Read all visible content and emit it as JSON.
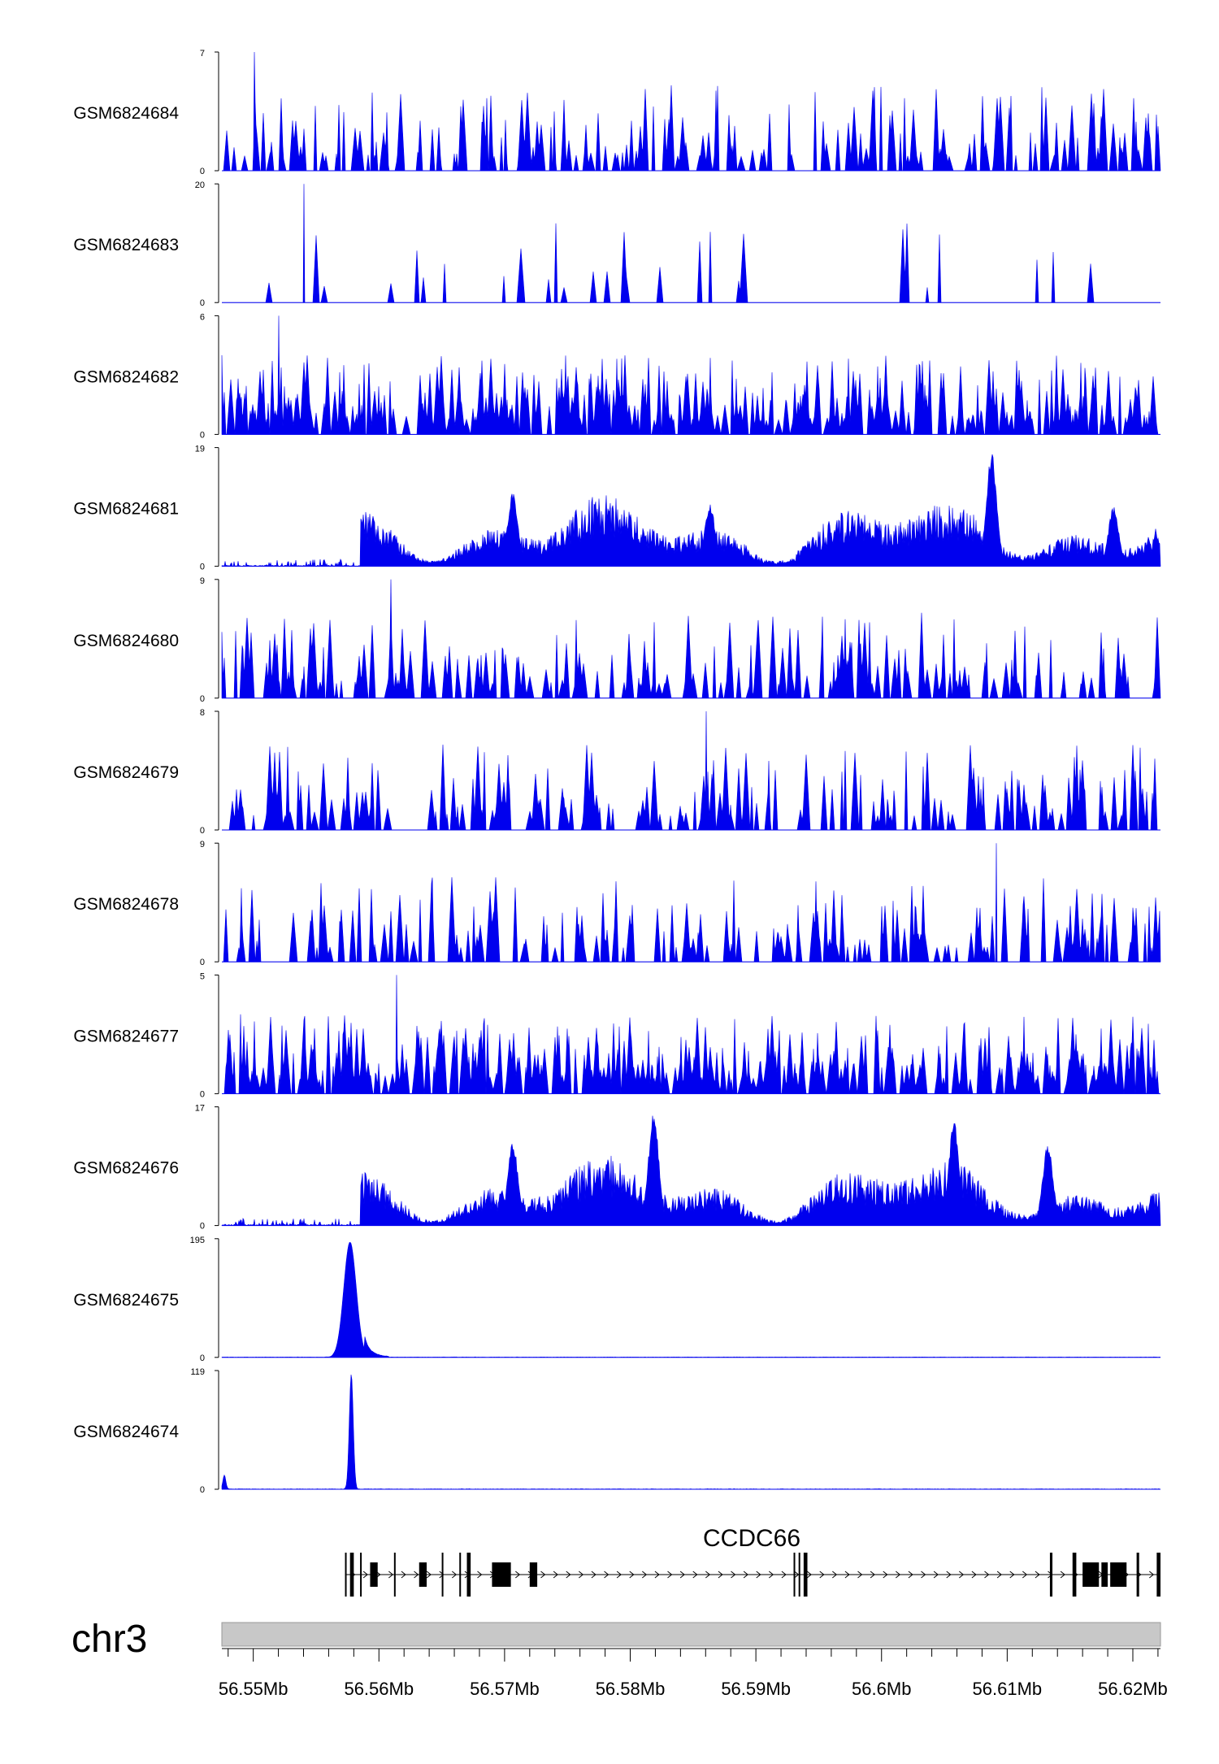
{
  "chart_data": {
    "type": "area",
    "title": "",
    "chromosome": "chr3",
    "x_range_mb": [
      56.5475,
      56.6222
    ],
    "x_ticks": [
      {
        "value": 56.55,
        "label": "56.55Mb"
      },
      {
        "value": 56.56,
        "label": "56.56Mb"
      },
      {
        "value": 56.57,
        "label": "56.57Mb"
      },
      {
        "value": 56.58,
        "label": "56.58Mb"
      },
      {
        "value": 56.59,
        "label": "56.59Mb"
      },
      {
        "value": 56.6,
        "label": "56.6Mb"
      },
      {
        "value": 56.61,
        "label": "56.61Mb"
      },
      {
        "value": 56.62,
        "label": "56.62Mb"
      }
    ],
    "fill_color": "#0000ee",
    "series": [
      {
        "name": "GSM6824684",
        "ymin": 0,
        "ymax": 7,
        "ymin_label": "0",
        "ymax_label": "7",
        "pattern": "sparse",
        "seed": 11
      },
      {
        "name": "GSM6824683",
        "ymin": 0,
        "ymax": 20,
        "ymin_label": "0",
        "ymax_label": "20",
        "pattern": "very-sparse",
        "seed": 23
      },
      {
        "name": "GSM6824682",
        "ymin": 0,
        "ymax": 6,
        "ymin_label": "0",
        "ymax_label": "6",
        "pattern": "dense-spiky",
        "seed": 37
      },
      {
        "name": "GSM6824681",
        "ymin": 0,
        "ymax": 19,
        "ymin_label": "0",
        "ymax_label": "19",
        "pattern": "broad",
        "seed": 41
      },
      {
        "name": "GSM6824680",
        "ymin": 0,
        "ymax": 9,
        "ymin_label": "0",
        "ymax_label": "9",
        "pattern": "sparse",
        "seed": 53
      },
      {
        "name": "GSM6824679",
        "ymin": 0,
        "ymax": 8,
        "ymin_label": "0",
        "ymax_label": "8",
        "pattern": "sparse",
        "seed": 67
      },
      {
        "name": "GSM6824678",
        "ymin": 0,
        "ymax": 9,
        "ymin_label": "0",
        "ymax_label": "9",
        "pattern": "sparse",
        "seed": 71
      },
      {
        "name": "GSM6824677",
        "ymin": 0,
        "ymax": 5,
        "ymin_label": "0",
        "ymax_label": "5",
        "pattern": "dense-spiky",
        "seed": 83
      },
      {
        "name": "GSM6824676",
        "ymin": 0,
        "ymax": 17,
        "ymin_label": "0",
        "ymax_label": "17",
        "pattern": "broad",
        "seed": 97
      },
      {
        "name": "GSM6824675",
        "ymin": 0,
        "ymax": 195,
        "ymin_label": "0",
        "ymax_label": "195",
        "pattern": "single-peak",
        "peak_mb": 56.5577,
        "peak_width_mb": 0.0007,
        "seed": 101
      },
      {
        "name": "GSM6824674",
        "ymin": 0,
        "ymax": 119,
        "ymin_label": "0",
        "ymax_label": "119",
        "pattern": "single-peak",
        "peak_mb": 56.5578,
        "peak_width_mb": 0.00022,
        "edge_peak_mb": 56.5477,
        "edge_peak_value": 14,
        "seed": 113
      }
    ],
    "gene_track": {
      "gene_name": "CCDC66",
      "start_mb": 56.5573,
      "end_mb": 56.6222,
      "strand": "+",
      "exons_mb": [
        [
          56.5573,
          56.5574
        ],
        [
          56.5577,
          56.558
        ],
        [
          56.5585,
          56.5586
        ],
        [
          56.5593,
          56.5599
        ],
        [
          56.5612,
          56.5613
        ],
        [
          56.5632,
          56.5638
        ],
        [
          56.565,
          56.5651
        ],
        [
          56.5664,
          56.5665
        ],
        [
          56.567,
          56.5673
        ],
        [
          56.569,
          56.5705
        ],
        [
          56.572,
          56.5726
        ],
        [
          56.593,
          56.5931
        ],
        [
          56.5934,
          56.5935
        ],
        [
          56.5938,
          56.5941
        ],
        [
          56.6134,
          56.6136
        ],
        [
          56.6152,
          56.6155
        ],
        [
          56.616,
          56.6173
        ],
        [
          56.6175,
          56.618
        ],
        [
          56.6182,
          56.6195
        ],
        [
          56.6203,
          56.6205
        ],
        [
          56.6219,
          56.6222
        ]
      ]
    }
  }
}
